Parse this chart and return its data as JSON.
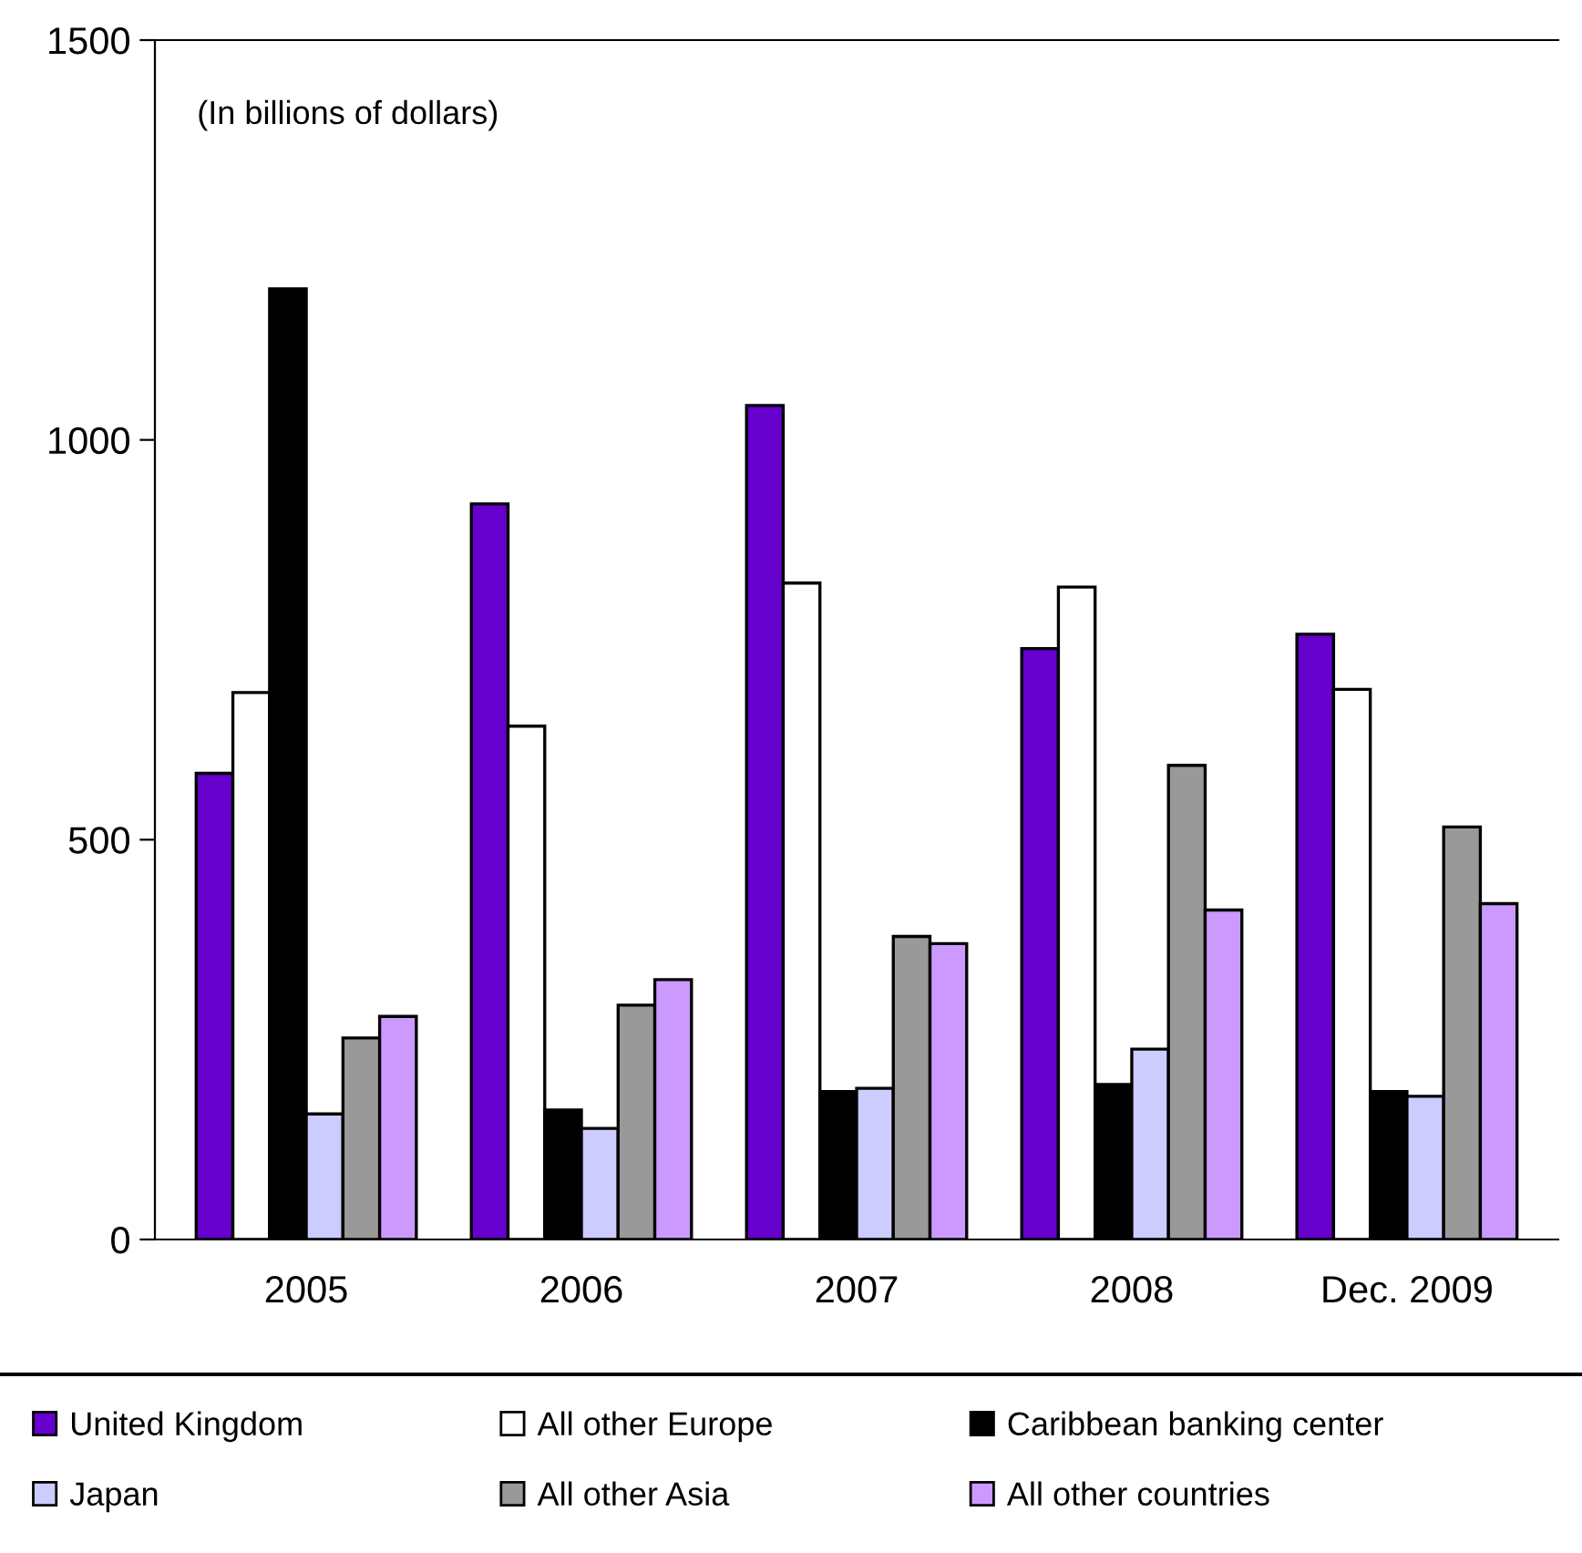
{
  "chart_data": {
    "type": "bar",
    "categories": [
      "2005",
      "2006",
      "2007",
      "2008",
      "Dec. 2009"
    ],
    "annotations": [
      "(In billions of dollars)"
    ],
    "ylim": [
      0,
      1500
    ],
    "yticks": [
      0,
      500,
      1000,
      1500
    ],
    "grid": false,
    "legend": "bottom",
    "series": [
      {
        "name": "United Kingdom",
        "color": "#6600cc",
        "values": [
          583,
          920,
          1043,
          739,
          757
        ]
      },
      {
        "name": "All other Europe",
        "color": "#ffffff",
        "values": [
          684,
          642,
          821,
          816,
          688
        ]
      },
      {
        "name": "Caribbean banking center",
        "color": "#000000",
        "values": [
          1189,
          162,
          185,
          194,
          185
        ]
      },
      {
        "name": "Japan",
        "color": "#ccccff",
        "values": [
          157,
          139,
          189,
          238,
          179
        ]
      },
      {
        "name": "All other Asia",
        "color": "#999999",
        "values": [
          252,
          293,
          379,
          593,
          516
        ]
      },
      {
        "name": "All other countries",
        "color": "#cc99ff",
        "values": [
          279,
          325,
          370,
          412,
          420
        ]
      }
    ]
  }
}
